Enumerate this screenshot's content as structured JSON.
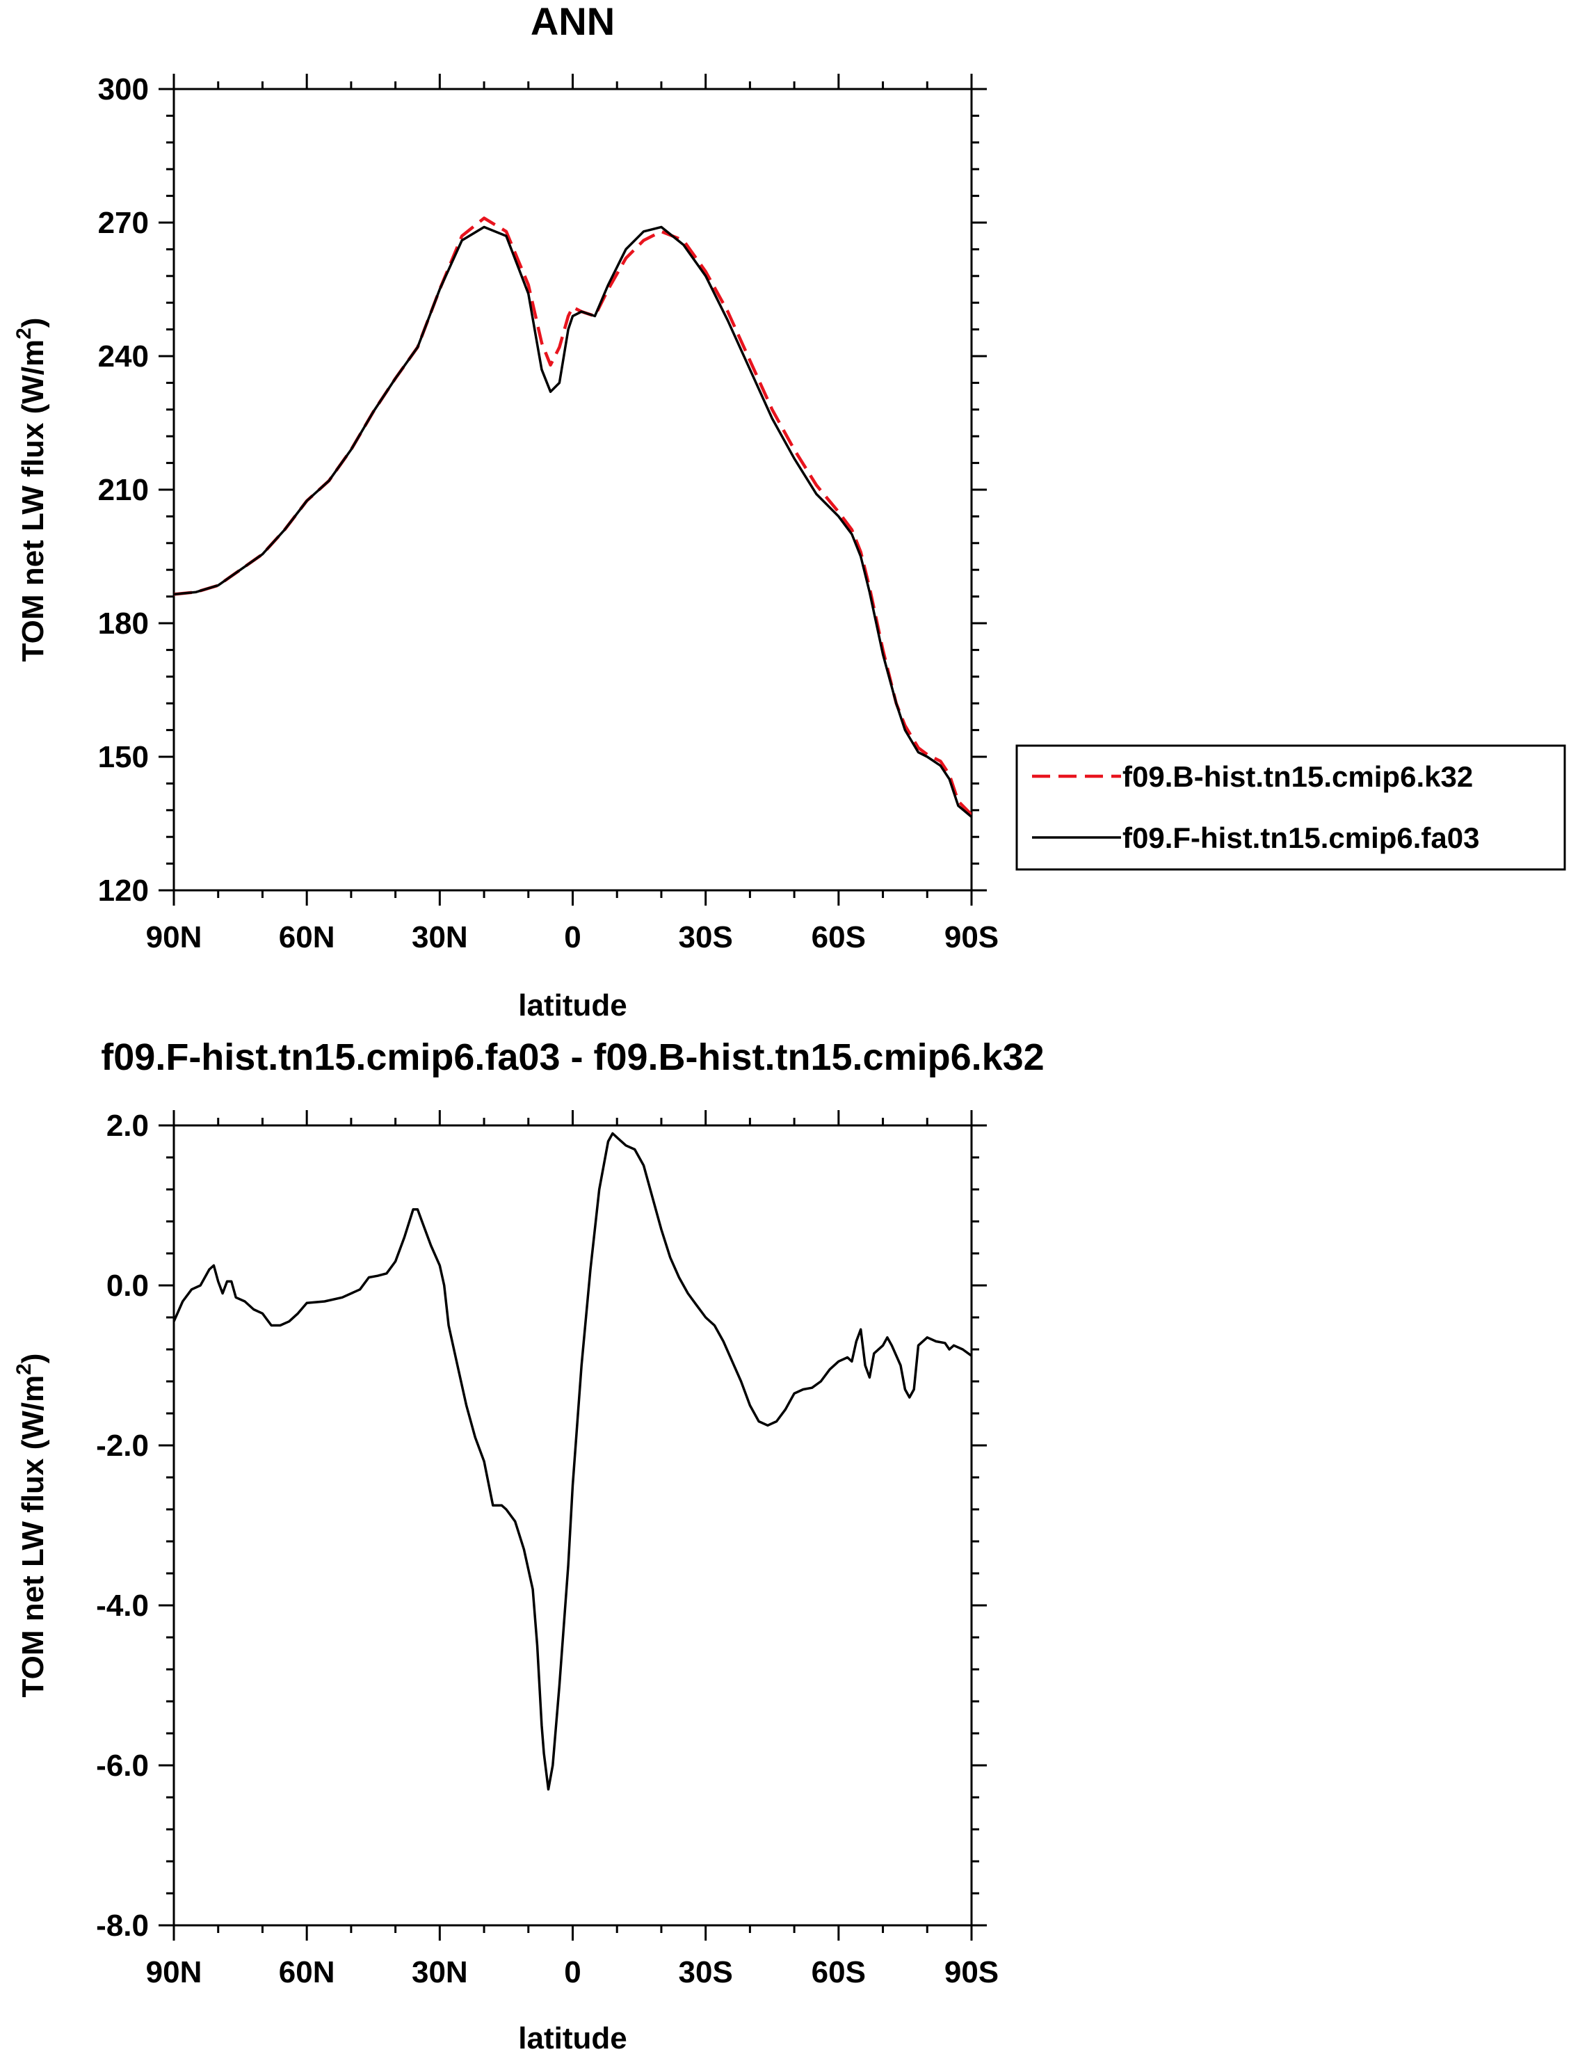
{
  "chart_data": [
    {
      "type": "line",
      "title": "ANN",
      "xlabel": "latitude",
      "ylabel_main": "TOM net LW flux (W/m",
      "ylabel_sup": "2",
      "ylabel_tail": ")",
      "xlim": [
        90,
        -90
      ],
      "ylim": [
        120,
        300
      ],
      "xticks": [
        {
          "v": 90,
          "label": "90N"
        },
        {
          "v": 60,
          "label": "60N"
        },
        {
          "v": 30,
          "label": "30N"
        },
        {
          "v": 0,
          "label": "0"
        },
        {
          "v": -30,
          "label": "30S"
        },
        {
          "v": -60,
          "label": "60S"
        },
        {
          "v": -90,
          "label": "90S"
        }
      ],
      "yticks": [
        {
          "v": 120,
          "label": "120"
        },
        {
          "v": 150,
          "label": "150"
        },
        {
          "v": 180,
          "label": "180"
        },
        {
          "v": 210,
          "label": "210"
        },
        {
          "v": 240,
          "label": "240"
        },
        {
          "v": 270,
          "label": "270"
        },
        {
          "v": 300,
          "label": "300"
        }
      ],
      "legend_position": "right",
      "series": [
        {
          "name": "f09.B-hist.tn15.cmip6.k32",
          "color": "#e8141e",
          "dash": true,
          "points": [
            [
              90,
              186.5
            ],
            [
              85,
              187
            ],
            [
              80,
              188.5
            ],
            [
              75,
              192
            ],
            [
              70,
              195.5
            ],
            [
              65,
              201
            ],
            [
              60,
              207.5
            ],
            [
              55,
              212
            ],
            [
              50,
              219
            ],
            [
              45,
              227.5
            ],
            [
              40,
              235
            ],
            [
              35,
              242
            ],
            [
              30,
              255
            ],
            [
              25,
              267
            ],
            [
              20,
              271
            ],
            [
              15,
              268
            ],
            [
              10,
              256
            ],
            [
              7,
              243
            ],
            [
              5,
              238
            ],
            [
              3,
              242
            ],
            [
              1,
              249
            ],
            [
              0,
              251
            ],
            [
              -2,
              250
            ],
            [
              -5,
              249
            ],
            [
              -8,
              255
            ],
            [
              -12,
              262
            ],
            [
              -16,
              266
            ],
            [
              -20,
              268
            ],
            [
              -25,
              266
            ],
            [
              -30,
              259
            ],
            [
              -35,
              250
            ],
            [
              -40,
              239
            ],
            [
              -45,
              228
            ],
            [
              -50,
              219
            ],
            [
              -55,
              211
            ],
            [
              -60,
              205
            ],
            [
              -63,
              201
            ],
            [
              -65,
              196
            ],
            [
              -67,
              188
            ],
            [
              -70,
              174
            ],
            [
              -73,
              162
            ],
            [
              -75,
              157
            ],
            [
              -78,
              152
            ],
            [
              -80,
              150.5
            ],
            [
              -83,
              149
            ],
            [
              -85,
              146
            ],
            [
              -87,
              140
            ],
            [
              -90,
              137
            ]
          ]
        },
        {
          "name": "f09.F-hist.tn15.cmip6.fa03",
          "color": "#000000",
          "dash": false,
          "points": [
            [
              90,
              186.5
            ],
            [
              85,
              187
            ],
            [
              80,
              188.5
            ],
            [
              75,
              192
            ],
            [
              70,
              195.5
            ],
            [
              65,
              201
            ],
            [
              60,
              207.5
            ],
            [
              55,
              212
            ],
            [
              50,
              219
            ],
            [
              45,
              227.5
            ],
            [
              40,
              235
            ],
            [
              35,
              242
            ],
            [
              30,
              255
            ],
            [
              25,
              266
            ],
            [
              20,
              269
            ],
            [
              15,
              267
            ],
            [
              10,
              254
            ],
            [
              7,
              237
            ],
            [
              5,
              232
            ],
            [
              3,
              234
            ],
            [
              1,
              246
            ],
            [
              0,
              249
            ],
            [
              -2,
              250
            ],
            [
              -5,
              249
            ],
            [
              -8,
              256
            ],
            [
              -12,
              264
            ],
            [
              -16,
              268
            ],
            [
              -20,
              269
            ],
            [
              -25,
              265
            ],
            [
              -30,
              258
            ],
            [
              -35,
              248
            ],
            [
              -40,
              237
            ],
            [
              -45,
              226
            ],
            [
              -50,
              217
            ],
            [
              -55,
              209
            ],
            [
              -60,
              204
            ],
            [
              -63,
              200
            ],
            [
              -65,
              195
            ],
            [
              -67,
              187
            ],
            [
              -70,
              173
            ],
            [
              -73,
              162
            ],
            [
              -75,
              156
            ],
            [
              -78,
              151
            ],
            [
              -80,
              150
            ],
            [
              -83,
              148
            ],
            [
              -85,
              145
            ],
            [
              -87,
              139
            ],
            [
              -90,
              136.5
            ]
          ]
        }
      ]
    },
    {
      "type": "line",
      "title": "f09.F-hist.tn15.cmip6.fa03 - f09.B-hist.tn15.cmip6.k32",
      "xlabel": "latitude",
      "ylabel_main": "TOM net LW flux (W/m",
      "ylabel_sup": "2",
      "ylabel_tail": ")",
      "xlim": [
        90,
        -90
      ],
      "ylim": [
        -8,
        2
      ],
      "xticks": [
        {
          "v": 90,
          "label": "90N"
        },
        {
          "v": 60,
          "label": "60N"
        },
        {
          "v": 30,
          "label": "30N"
        },
        {
          "v": 0,
          "label": "0"
        },
        {
          "v": -30,
          "label": "30S"
        },
        {
          "v": -60,
          "label": "60S"
        },
        {
          "v": -90,
          "label": "90S"
        }
      ],
      "yticks": [
        {
          "v": -8,
          "label": "-8.0"
        },
        {
          "v": -6,
          "label": "-6.0"
        },
        {
          "v": -4,
          "label": "-4.0"
        },
        {
          "v": -2,
          "label": "-2.0"
        },
        {
          "v": 0,
          "label": "0.0"
        },
        {
          "v": 2,
          "label": "2.0"
        }
      ],
      "series": [
        {
          "name": "",
          "color": "#000000",
          "dash": false,
          "points": [
            [
              90,
              -0.45
            ],
            [
              88,
              -0.2
            ],
            [
              86,
              -0.05
            ],
            [
              84,
              0
            ],
            [
              82,
              0.2
            ],
            [
              81,
              0.25
            ],
            [
              80,
              0.05
            ],
            [
              79,
              -0.1
            ],
            [
              78,
              0.05
            ],
            [
              77,
              0.05
            ],
            [
              76,
              -0.15
            ],
            [
              74,
              -0.2
            ],
            [
              72,
              -0.3
            ],
            [
              70,
              -0.35
            ],
            [
              68,
              -0.5
            ],
            [
              66,
              -0.5
            ],
            [
              64,
              -0.45
            ],
            [
              62,
              -0.35
            ],
            [
              60,
              -0.22
            ],
            [
              56,
              -0.2
            ],
            [
              52,
              -0.15
            ],
            [
              48,
              -0.05
            ],
            [
              46,
              0.1
            ],
            [
              44,
              0.12
            ],
            [
              42,
              0.15
            ],
            [
              40,
              0.3
            ],
            [
              38,
              0.6
            ],
            [
              36,
              0.95
            ],
            [
              35,
              0.95
            ],
            [
              34,
              0.8
            ],
            [
              32,
              0.5
            ],
            [
              30,
              0.25
            ],
            [
              29,
              0
            ],
            [
              28,
              -0.5
            ],
            [
              26,
              -1.0
            ],
            [
              24,
              -1.5
            ],
            [
              22,
              -1.9
            ],
            [
              20,
              -2.2
            ],
            [
              18,
              -2.75
            ],
            [
              16,
              -2.75
            ],
            [
              15,
              -2.8
            ],
            [
              13,
              -2.95
            ],
            [
              11,
              -3.3
            ],
            [
              9,
              -3.8
            ],
            [
              8,
              -4.5
            ],
            [
              7,
              -5.5
            ],
            [
              6.5,
              -5.85
            ],
            [
              5.5,
              -6.3
            ],
            [
              4.5,
              -6.0
            ],
            [
              3,
              -5.0
            ],
            [
              1,
              -3.5
            ],
            [
              0,
              -2.5
            ],
            [
              -2,
              -1.0
            ],
            [
              -4,
              0.2
            ],
            [
              -6,
              1.2
            ],
            [
              -8,
              1.8
            ],
            [
              -9,
              1.9
            ],
            [
              -10,
              1.85
            ],
            [
              -12,
              1.75
            ],
            [
              -14,
              1.7
            ],
            [
              -16,
              1.5
            ],
            [
              -18,
              1.1
            ],
            [
              -20,
              0.7
            ],
            [
              -22,
              0.35
            ],
            [
              -24,
              0.1
            ],
            [
              -26,
              -0.1
            ],
            [
              -28,
              -0.25
            ],
            [
              -30,
              -0.4
            ],
            [
              -32,
              -0.5
            ],
            [
              -34,
              -0.7
            ],
            [
              -36,
              -0.95
            ],
            [
              -38,
              -1.2
            ],
            [
              -40,
              -1.5
            ],
            [
              -42,
              -1.7
            ],
            [
              -44,
              -1.75
            ],
            [
              -46,
              -1.7
            ],
            [
              -48,
              -1.55
            ],
            [
              -50,
              -1.35
            ],
            [
              -52,
              -1.3
            ],
            [
              -54,
              -1.28
            ],
            [
              -56,
              -1.2
            ],
            [
              -58,
              -1.05
            ],
            [
              -60,
              -0.95
            ],
            [
              -62,
              -0.9
            ],
            [
              -63,
              -0.95
            ],
            [
              -64,
              -0.7
            ],
            [
              -65,
              -0.55
            ],
            [
              -66,
              -1.0
            ],
            [
              -67,
              -1.15
            ],
            [
              -68,
              -0.85
            ],
            [
              -70,
              -0.75
            ],
            [
              -71,
              -0.65
            ],
            [
              -72,
              -0.75
            ],
            [
              -74,
              -1.0
            ],
            [
              -75,
              -1.3
            ],
            [
              -76,
              -1.4
            ],
            [
              -77,
              -1.3
            ],
            [
              -78,
              -0.75
            ],
            [
              -80,
              -0.65
            ],
            [
              -82,
              -0.7
            ],
            [
              -84,
              -0.72
            ],
            [
              -85,
              -0.8
            ],
            [
              -86,
              -0.75
            ],
            [
              -88,
              -0.8
            ],
            [
              -90,
              -0.88
            ]
          ]
        }
      ]
    }
  ]
}
